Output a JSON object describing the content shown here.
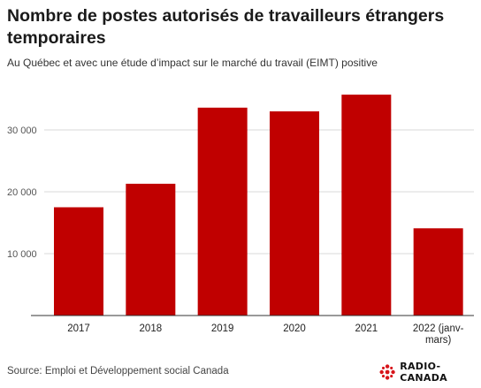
{
  "header": {
    "title": "Nombre de postes autorisés de travailleurs étrangers temporaires",
    "subtitle": "Au Québec et avec une étude d’impact sur le marché du travail (EIMT) positive"
  },
  "footer": {
    "source": "Source: Emploi et Développement social Canada",
    "logo_text": "RADIO-CANADA",
    "logo_icon": "radio-canada-logo-icon"
  },
  "chart_data": {
    "type": "bar",
    "categories": [
      "2017",
      "2018",
      "2019",
      "2020",
      "2021",
      "2022 (janv-mars)"
    ],
    "category_lines": [
      [
        "2017"
      ],
      [
        "2018"
      ],
      [
        "2019"
      ],
      [
        "2020"
      ],
      [
        "2021"
      ],
      [
        "2022 (janv-",
        "mars)"
      ]
    ],
    "values": [
      17500,
      21300,
      33600,
      33000,
      35700,
      14100
    ],
    "ylim": [
      0,
      38000
    ],
    "yticks": [
      10000,
      20000,
      30000
    ],
    "ytick_labels": [
      "10 000",
      "20 000",
      "30 000"
    ],
    "grid": true,
    "bar_color": "#c00000"
  }
}
